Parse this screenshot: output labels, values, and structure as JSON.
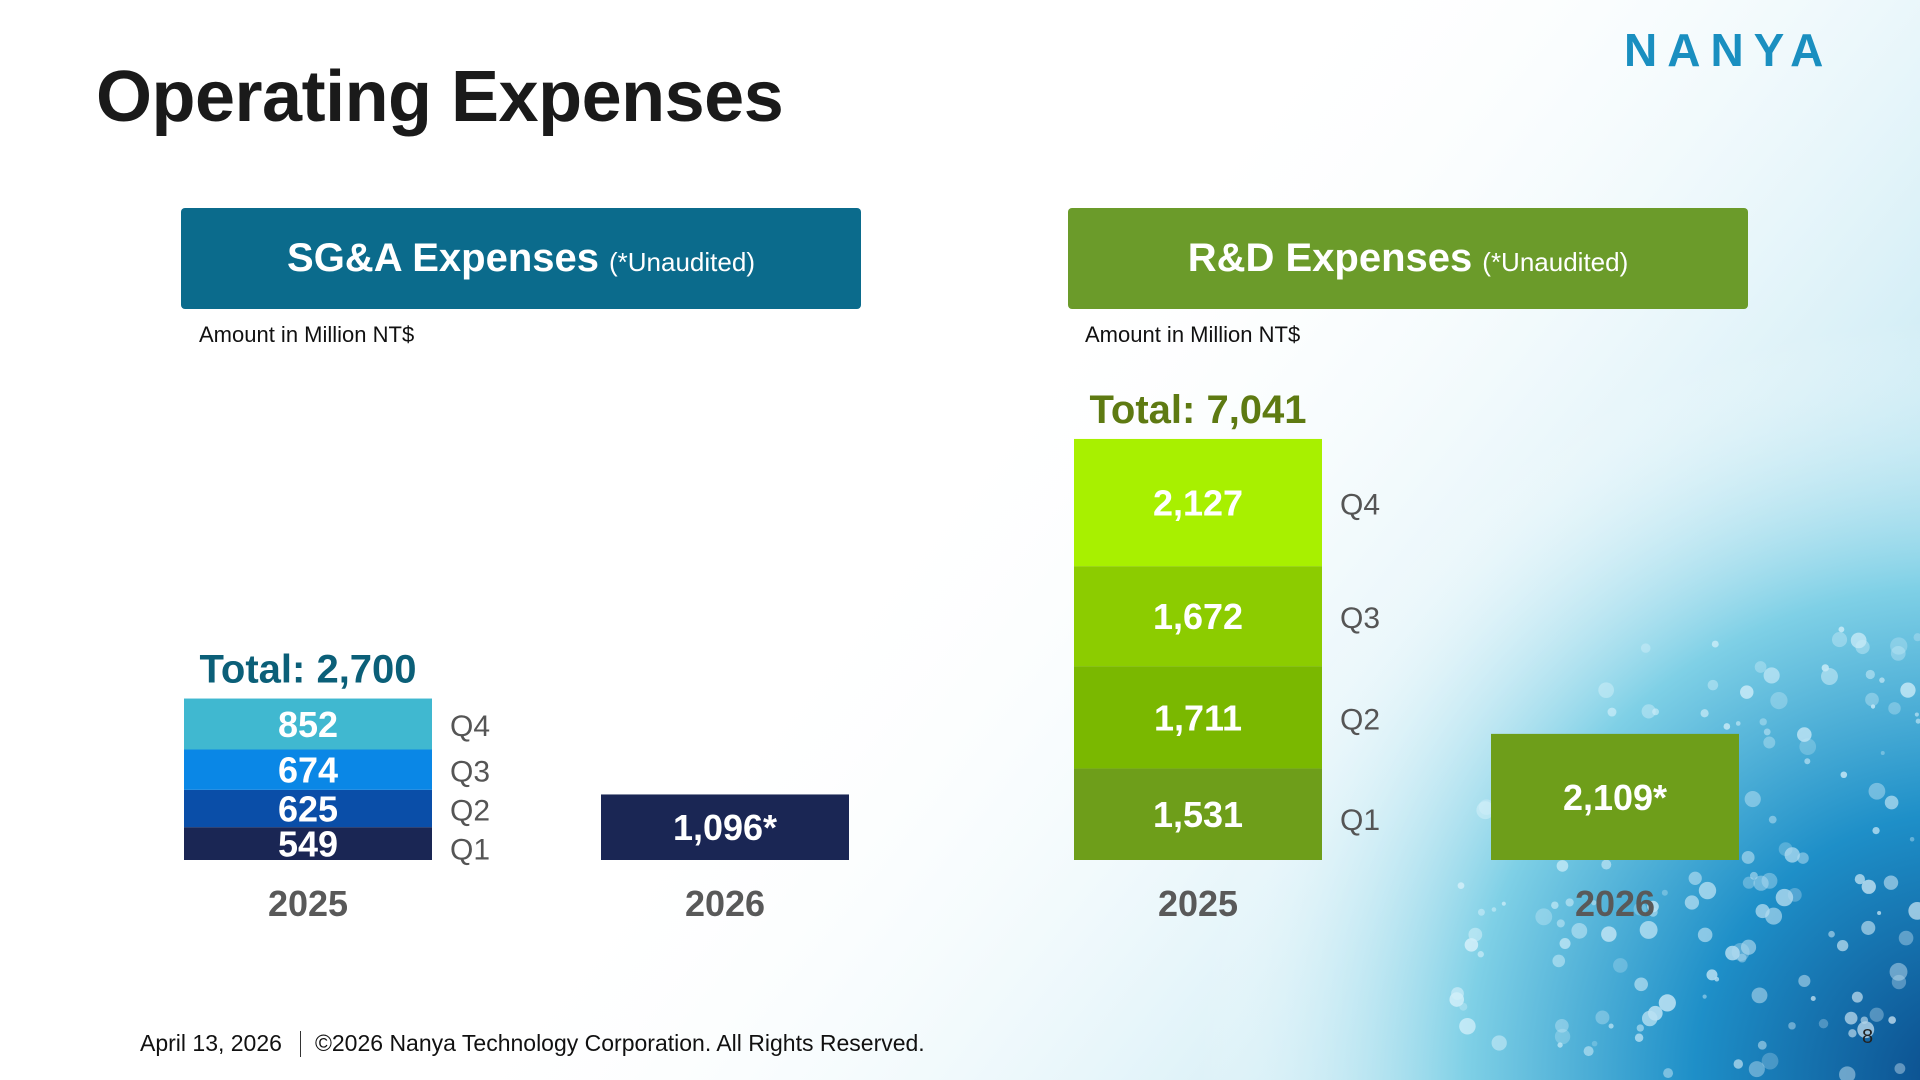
{
  "page": {
    "title": "Operating Expenses",
    "logo_text": "NANYA",
    "footer_date": "April 13, 2026",
    "footer_copyright": "©2026 Nanya Technology Corporation. All Rights Reserved.",
    "page_number": "8"
  },
  "colors": {
    "sga_header": "#0b6b8c",
    "rd_header": "#6b9b2a",
    "sga_total": "#0b5f78",
    "rd_total": "#5e7a12",
    "logo": "#1a8fc0",
    "sga_segments": [
      "#1a2654",
      "#0a4ea8",
      "#0a87e6",
      "#40b8d0"
    ],
    "sga_2026": "#1a2654",
    "rd_segments": [
      "#6e9e1a",
      "#7ab800",
      "#8ccc00",
      "#a8f000"
    ],
    "rd_2026": "#6e9e1a"
  },
  "chart_data": [
    {
      "id": "sga",
      "type": "bar",
      "stacked": true,
      "title": "SG&A Expenses",
      "title_note": "(*Unaudited)",
      "unit_label": "Amount in Million NT$",
      "categories": [
        "2025",
        "2026"
      ],
      "series": [
        {
          "name": "Q1",
          "values": [
            549,
            null
          ],
          "labels": [
            "549",
            ""
          ]
        },
        {
          "name": "Q2",
          "values": [
            625,
            null
          ],
          "labels": [
            "625",
            ""
          ]
        },
        {
          "name": "Q3",
          "values": [
            674,
            null
          ],
          "labels": [
            "674",
            ""
          ]
        },
        {
          "name": "Q4",
          "values": [
            852,
            null
          ],
          "labels": [
            "852",
            ""
          ]
        }
      ],
      "single": {
        "category": "2026",
        "value": 1096,
        "label": "1,096*"
      },
      "total_label": "Total: 2,700",
      "ylim": [
        0,
        7500
      ]
    },
    {
      "id": "rd",
      "type": "bar",
      "stacked": true,
      "title": "R&D Expenses",
      "title_note": "(*Unaudited)",
      "unit_label": "Amount in Million NT$",
      "categories": [
        "2025",
        "2026"
      ],
      "series": [
        {
          "name": "Q1",
          "values": [
            1531,
            null
          ],
          "labels": [
            "1,531",
            ""
          ]
        },
        {
          "name": "Q2",
          "values": [
            1711,
            null
          ],
          "labels": [
            "1,711",
            ""
          ]
        },
        {
          "name": "Q3",
          "values": [
            1672,
            null
          ],
          "labels": [
            "1,672",
            ""
          ]
        },
        {
          "name": "Q4",
          "values": [
            2127,
            null
          ],
          "labels": [
            "2,127",
            ""
          ]
        }
      ],
      "single": {
        "category": "2026",
        "value": 2109,
        "label": "2,109*"
      },
      "total_label": "Total: 7,041",
      "ylim": [
        0,
        7500
      ]
    }
  ]
}
